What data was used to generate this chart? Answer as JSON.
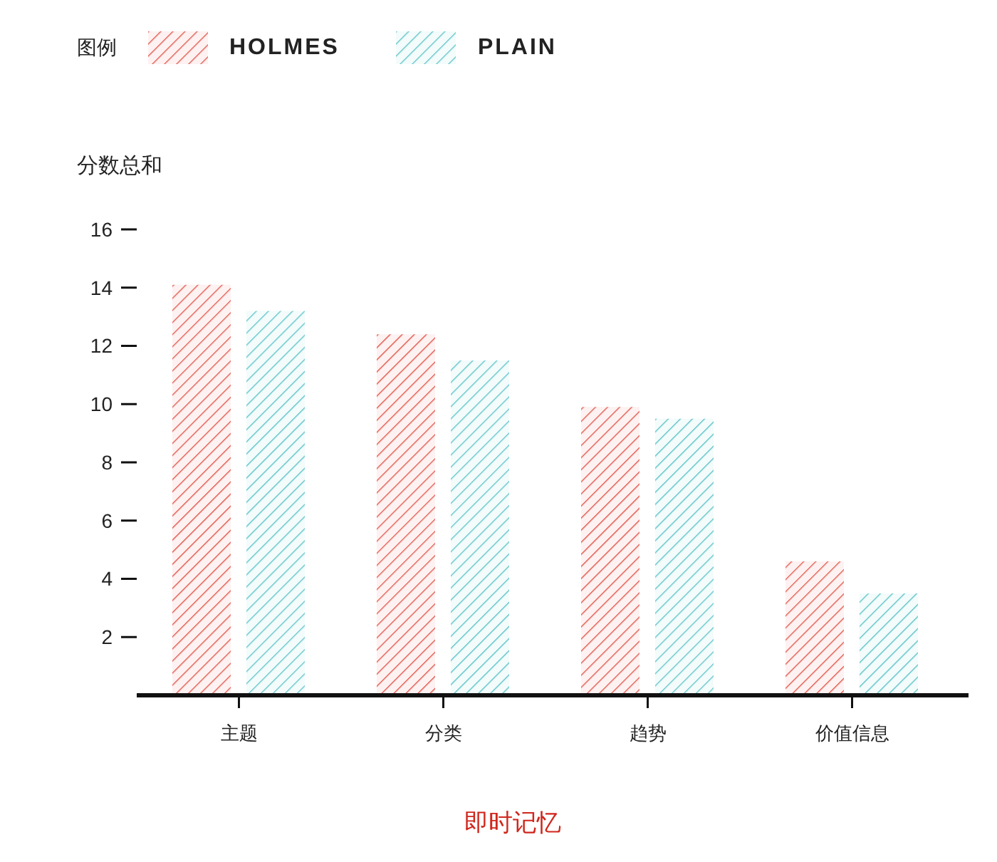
{
  "chart_data": {
    "type": "bar",
    "title": "即时记忆",
    "ylabel": "分数总和",
    "legend_title": "图例",
    "categories": [
      "主题",
      "分类",
      "趋势",
      "价值信息"
    ],
    "series": [
      {
        "name": "HOLMES",
        "color": "#e2574c",
        "values": [
          14.1,
          12.4,
          9.9,
          4.6
        ]
      },
      {
        "name": "PLAIN",
        "color": "#5fc4c8",
        "values": [
          13.2,
          11.5,
          9.5,
          3.5
        ]
      }
    ],
    "ylim": [
      0,
      16
    ],
    "yticks": [
      2,
      4,
      6,
      8,
      10,
      12,
      14,
      16
    ],
    "legend": "top left"
  }
}
